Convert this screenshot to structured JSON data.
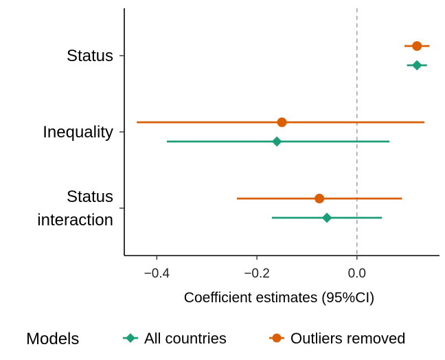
{
  "chart_data": {
    "type": "scatter",
    "subtype": "forest-plot",
    "xlabel": "Coefficient estimates (95%CI)",
    "ylabel": "",
    "xlim": [
      -0.465,
      0.165
    ],
    "x_ticks": [
      -0.4,
      -0.2,
      0.0
    ],
    "x_tick_labels": [
      "−0.4",
      "−0.2",
      "0.0"
    ],
    "reference_line": {
      "x": 0.0,
      "style": "dashed"
    },
    "grid": false,
    "categories": [
      {
        "key": "status",
        "lines": [
          "Status"
        ]
      },
      {
        "key": "inequality",
        "lines": [
          "Inequality"
        ]
      },
      {
        "key": "interaction",
        "lines": [
          "Status",
          "interaction"
        ]
      }
    ],
    "series": [
      {
        "name": "All countries",
        "color": "#1b9e77",
        "marker": "diamond",
        "points": [
          {
            "category": "status",
            "estimate": 0.12,
            "lower": 0.1,
            "upper": 0.14
          },
          {
            "category": "inequality",
            "estimate": -0.16,
            "lower": -0.38,
            "upper": 0.065
          },
          {
            "category": "interaction",
            "estimate": -0.06,
            "lower": -0.17,
            "upper": 0.05
          }
        ]
      },
      {
        "name": "Outliers removed",
        "color": "#d95f02",
        "marker": "circle",
        "points": [
          {
            "category": "status",
            "estimate": 0.12,
            "lower": 0.095,
            "upper": 0.145
          },
          {
            "category": "inequality",
            "estimate": -0.15,
            "lower": -0.44,
            "upper": 0.135
          },
          {
            "category": "interaction",
            "estimate": -0.075,
            "lower": -0.24,
            "upper": 0.09
          }
        ]
      }
    ],
    "legend": {
      "title": "Models",
      "position": "bottom"
    }
  }
}
